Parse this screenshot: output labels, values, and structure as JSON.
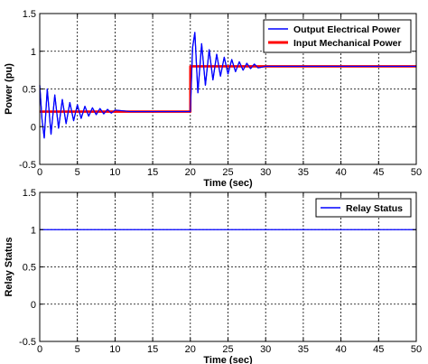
{
  "chart_data": [
    {
      "type": "line",
      "xlabel": "Time (sec)",
      "ylabel": "Power (pu)",
      "xlim": [
        0,
        50
      ],
      "ylim": [
        -0.5,
        1.5
      ],
      "x_ticks": [
        0,
        5,
        10,
        15,
        20,
        25,
        30,
        35,
        40,
        45,
        50
      ],
      "y_ticks": [
        -0.5,
        0,
        0.5,
        1,
        1.5
      ],
      "x_tick_labels": [
        "0",
        "5",
        "10",
        "15",
        "20",
        "25",
        "30",
        "35",
        "40",
        "45",
        "50"
      ],
      "y_tick_labels": [
        "-0.5",
        "0",
        "0.5",
        "1",
        "1.5"
      ],
      "grid": true,
      "legend_position": "top-right",
      "series": [
        {
          "name": "Output Electrical Power",
          "color": "#0000ff",
          "x": [
            0,
            0.3,
            0.6,
            1.0,
            1.5,
            2.0,
            2.5,
            3.0,
            3.5,
            4.0,
            4.5,
            5.0,
            5.5,
            6.0,
            6.5,
            7.0,
            7.5,
            8.0,
            8.5,
            9.0,
            9.5,
            10.0,
            12.0,
            14.0,
            16.0,
            18.0,
            19.9,
            20.0,
            20.3,
            20.6,
            21.0,
            21.5,
            22.0,
            22.5,
            23.0,
            23.5,
            24.0,
            24.5,
            25.0,
            25.5,
            26.0,
            26.5,
            27.0,
            27.5,
            28.0,
            28.5,
            29.0,
            30.0,
            35.0,
            40.0,
            45.0,
            50.0
          ],
          "y": [
            0.55,
            0.1,
            -0.15,
            0.5,
            -0.1,
            0.42,
            -0.02,
            0.36,
            0.04,
            0.32,
            0.08,
            0.29,
            0.11,
            0.27,
            0.14,
            0.25,
            0.16,
            0.24,
            0.17,
            0.23,
            0.18,
            0.22,
            0.2,
            0.2,
            0.2,
            0.2,
            0.2,
            0.2,
            1.05,
            1.25,
            0.45,
            1.1,
            0.55,
            1.02,
            0.62,
            0.96,
            0.67,
            0.92,
            0.7,
            0.89,
            0.73,
            0.86,
            0.75,
            0.84,
            0.77,
            0.83,
            0.78,
            0.8,
            0.8,
            0.8,
            0.8,
            0.8
          ]
        },
        {
          "name": "Input Mechanical Power",
          "color": "#ff0000",
          "x": [
            0,
            20,
            20,
            50
          ],
          "y": [
            0.2,
            0.2,
            0.8,
            0.8
          ]
        }
      ]
    },
    {
      "type": "line",
      "xlabel": "Time (sec)",
      "ylabel": "Relay Status",
      "xlim": [
        0,
        50
      ],
      "ylim": [
        -0.5,
        1.5
      ],
      "x_ticks": [
        0,
        5,
        10,
        15,
        20,
        25,
        30,
        35,
        40,
        45,
        50
      ],
      "y_ticks": [
        -0.5,
        0,
        0.5,
        1,
        1.5
      ],
      "x_tick_labels": [
        "0",
        "5",
        "10",
        "15",
        "20",
        "25",
        "30",
        "35",
        "40",
        "45",
        "50"
      ],
      "y_tick_labels": [
        "-0.5",
        "0",
        "0.5",
        "1",
        "1.5"
      ],
      "grid": true,
      "legend_position": "top-right",
      "series": [
        {
          "name": "Relay Status",
          "color": "#0000ff",
          "x": [
            0,
            50
          ],
          "y": [
            1,
            1
          ]
        }
      ]
    }
  ]
}
